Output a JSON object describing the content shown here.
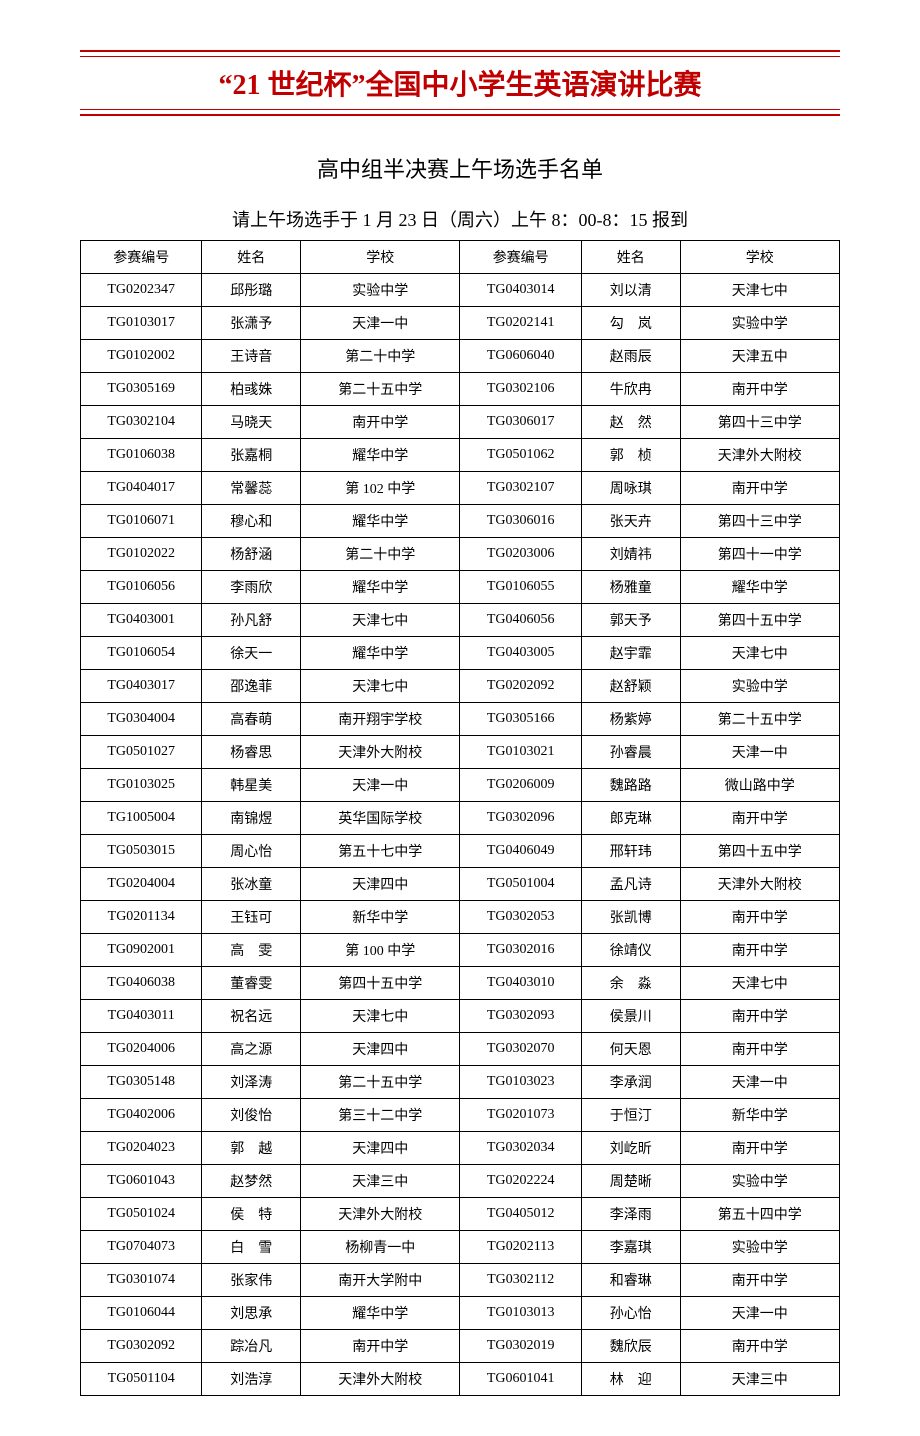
{
  "header": {
    "title": "“21 世纪杯”全国中小学生英语演讲比赛",
    "title_color": "#c00000",
    "rule_color": "#c00000",
    "title_fontsize": 28
  },
  "subTitle": "高中组半决赛上午场选手名单",
  "notice": "请上午场选手于 1 月 23 日（周六）上午 8：00-8：15 报到",
  "table": {
    "border_color": "#000000",
    "background_color": "#ffffff",
    "cell_fontsize": 14,
    "columns": [
      "参赛编号",
      "姓名",
      "学校",
      "参赛编号",
      "姓名",
      "学校"
    ],
    "column_widths_pct": [
      16,
      13,
      21,
      16,
      13,
      21
    ],
    "rows": [
      [
        "TG0202347",
        "邱彤璐",
        "实验中学",
        "TG0403014",
        "刘以清",
        "天津七中"
      ],
      [
        "TG0103017",
        "张潇予",
        "天津一中",
        "TG0202141",
        "勾　岚",
        "实验中学"
      ],
      [
        "TG0102002",
        "王诗音",
        "第二十中学",
        "TG0606040",
        "赵雨辰",
        "天津五中"
      ],
      [
        "TG0305169",
        "柏彧姝",
        "第二十五中学",
        "TG0302106",
        "牛欣冉",
        "南开中学"
      ],
      [
        "TG0302104",
        "马晓天",
        "南开中学",
        "TG0306017",
        "赵　然",
        "第四十三中学"
      ],
      [
        "TG0106038",
        "张嘉桐",
        "耀华中学",
        "TG0501062",
        "郭　桢",
        "天津外大附校"
      ],
      [
        "TG0404017",
        "常馨蕊",
        "第 102 中学",
        "TG0302107",
        "周咏琪",
        "南开中学"
      ],
      [
        "TG0106071",
        "穆心和",
        "耀华中学",
        "TG0306016",
        "张天卉",
        "第四十三中学"
      ],
      [
        "TG0102022",
        "杨舒涵",
        "第二十中学",
        "TG0203006",
        "刘婧祎",
        "第四十一中学"
      ],
      [
        "TG0106056",
        "李雨欣",
        "耀华中学",
        "TG0106055",
        "杨雅童",
        "耀华中学"
      ],
      [
        "TG0403001",
        "孙凡舒",
        "天津七中",
        "TG0406056",
        "郭天予",
        "第四十五中学"
      ],
      [
        "TG0106054",
        "徐天一",
        "耀华中学",
        "TG0403005",
        "赵宇霏",
        "天津七中"
      ],
      [
        "TG0403017",
        "邵逸菲",
        "天津七中",
        "TG0202092",
        "赵舒颖",
        "实验中学"
      ],
      [
        "TG0304004",
        "高春萌",
        "南开翔宇学校",
        "TG0305166",
        "杨紫婷",
        "第二十五中学"
      ],
      [
        "TG0501027",
        "杨睿思",
        "天津外大附校",
        "TG0103021",
        "孙睿晨",
        "天津一中"
      ],
      [
        "TG0103025",
        "韩星美",
        "天津一中",
        "TG0206009",
        "魏路路",
        "微山路中学"
      ],
      [
        "TG1005004",
        "南锦煜",
        "英华国际学校",
        "TG0302096",
        "郎克琳",
        "南开中学"
      ],
      [
        "TG0503015",
        "周心怡",
        "第五十七中学",
        "TG0406049",
        "邢轩玮",
        "第四十五中学"
      ],
      [
        "TG0204004",
        "张冰童",
        "天津四中",
        "TG0501004",
        "孟凡诗",
        "天津外大附校"
      ],
      [
        "TG0201134",
        "王钰可",
        "新华中学",
        "TG0302053",
        "张凯博",
        "南开中学"
      ],
      [
        "TG0902001",
        "高　雯",
        "第 100 中学",
        "TG0302016",
        "徐靖仪",
        "南开中学"
      ],
      [
        "TG0406038",
        "董睿雯",
        "第四十五中学",
        "TG0403010",
        "余　淼",
        "天津七中"
      ],
      [
        "TG0403011",
        "祝名远",
        "天津七中",
        "TG0302093",
        "侯景川",
        "南开中学"
      ],
      [
        "TG0204006",
        "高之源",
        "天津四中",
        "TG0302070",
        "何天恩",
        "南开中学"
      ],
      [
        "TG0305148",
        "刘泽涛",
        "第二十五中学",
        "TG0103023",
        "李承润",
        "天津一中"
      ],
      [
        "TG0402006",
        "刘俊怡",
        "第三十二中学",
        "TG0201073",
        "于恒汀",
        "新华中学"
      ],
      [
        "TG0204023",
        "郭　越",
        "天津四中",
        "TG0302034",
        "刘屹昕",
        "南开中学"
      ],
      [
        "TG0601043",
        "赵梦然",
        "天津三中",
        "TG0202224",
        "周楚晰",
        "实验中学"
      ],
      [
        "TG0501024",
        "侯　特",
        "天津外大附校",
        "TG0405012",
        "李泽雨",
        "第五十四中学"
      ],
      [
        "TG0704073",
        "白　雪",
        "杨柳青一中",
        "TG0202113",
        "李嘉琪",
        "实验中学"
      ],
      [
        "TG0301074",
        "张家伟",
        "南开大学附中",
        "TG0302112",
        "和睿琳",
        "南开中学"
      ],
      [
        "TG0106044",
        "刘思承",
        "耀华中学",
        "TG0103013",
        "孙心怡",
        "天津一中"
      ],
      [
        "TG0302092",
        "踪冶凡",
        "南开中学",
        "TG0302019",
        "魏欣辰",
        "南开中学"
      ],
      [
        "TG0501104",
        "刘浩淳",
        "天津外大附校",
        "TG0601041",
        "林　迎",
        "天津三中"
      ]
    ]
  }
}
